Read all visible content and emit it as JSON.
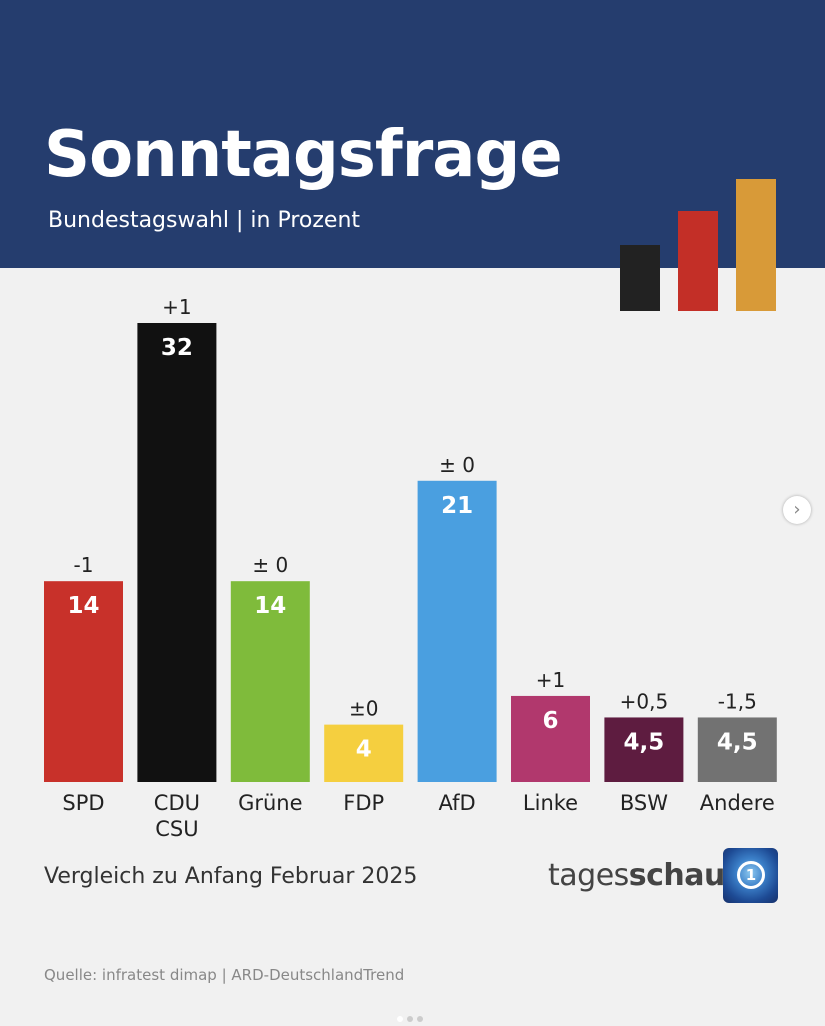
{
  "header": {
    "title": "Sonntagsfrage",
    "subtitle": "Bundestagswahl | in Prozent",
    "background": "#253d6e"
  },
  "decoration": {
    "bar_colors": [
      "#222222",
      "#c32f27",
      "#d89a38"
    ]
  },
  "chart_data": {
    "type": "bar",
    "title": "Sonntagsfrage",
    "subtitle": "Bundestagswahl | in Prozent",
    "categories": [
      "SPD",
      "CDU\nCSU",
      "Grüne",
      "FDP",
      "AfD",
      "Linke",
      "BSW",
      "Andere"
    ],
    "values": [
      14,
      32,
      14,
      4,
      21,
      6,
      4.5,
      4.5
    ],
    "value_labels": [
      "14",
      "32",
      "14",
      "4",
      "21",
      "6",
      "4,5",
      "4,5"
    ],
    "change_labels": [
      "-1",
      "+1",
      "± 0",
      "±0",
      "± 0",
      "+1",
      "+0,5",
      "-1,5"
    ],
    "colors": [
      "#c8312a",
      "#111111",
      "#7fbb3b",
      "#f5cf3f",
      "#4a9fe0",
      "#b1386d",
      "#5e1c40",
      "#727272"
    ],
    "ylim": [
      0,
      32
    ],
    "grid": false
  },
  "footer": {
    "note": "Vergleich zu Anfang Februar 2025",
    "brand_light": "tages",
    "brand_bold": "schau",
    "source": "Quelle: infratest dimap | ARD-DeutschlandTrend"
  },
  "nav": {
    "next_icon": "chevron-right-icon",
    "next_glyph": "›",
    "pages": 3,
    "current_page": 1
  }
}
